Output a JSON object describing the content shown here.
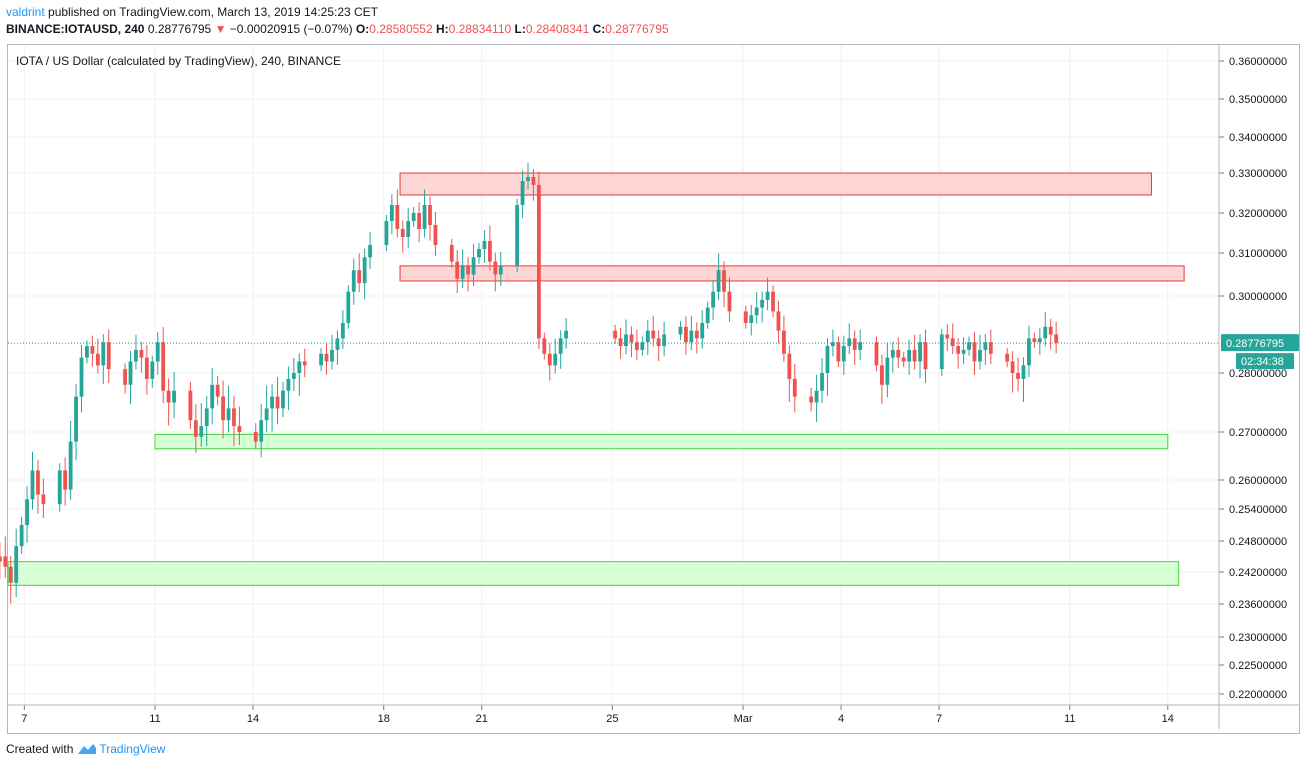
{
  "header": {
    "user": "valdrint",
    "published": "published on TradingView.com, March 13, 2019 14:25:23 CET",
    "symbol": "BINANCE:IOTAUSD, 240",
    "last": "0.28776795",
    "change": "−0.00020915 (−0.07%)",
    "o_label": "O:",
    "o_value": "0.28580552",
    "h_label": "H:",
    "h_value": "0.28834110",
    "l_label": "L:",
    "l_value": "0.28408341",
    "c_label": "C:",
    "c_value": "0.28776795"
  },
  "footer": {
    "created_with": "Created with",
    "brand": "TradingView"
  },
  "colors": {
    "up": "#26a69a",
    "down": "#ef5350",
    "grid": "#eef0f3",
    "resistance_fill": "#ffd6d6",
    "resistance_border": "#e53935",
    "support_fill": "#d7ffd6",
    "support_border": "#43d33d",
    "price_tag": "#26a69a",
    "last_line": "#2196a8"
  },
  "chart_data": {
    "type": "candlestick",
    "title": "IOTA / US Dollar (calculated by TradingView), 240, BINANCE",
    "y_ticks": [
      "0.36000000",
      "0.35000000",
      "0.34000000",
      "0.33000000",
      "0.32000000",
      "0.31000000",
      "0.30000000",
      "0.28000000",
      "0.27000000",
      "0.26000000",
      "0.25400000",
      "0.24800000",
      "0.24200000",
      "0.23600000",
      "0.23000000",
      "0.22500000",
      "0.22000000"
    ],
    "y_tick_values": [
      0.36,
      0.35,
      0.34,
      0.33,
      0.32,
      0.31,
      0.3,
      0.28,
      0.27,
      0.26,
      0.254,
      0.248,
      0.242,
      0.236,
      0.23,
      0.225,
      0.22
    ],
    "x_ticks": [
      {
        "label": "7",
        "date": "2019-02-07"
      },
      {
        "label": "11",
        "date": "2019-02-11"
      },
      {
        "label": "14",
        "date": "2019-02-14"
      },
      {
        "label": "18",
        "date": "2019-02-18"
      },
      {
        "label": "21",
        "date": "2019-02-21"
      },
      {
        "label": "25",
        "date": "2019-02-25"
      },
      {
        "label": "Mar",
        "date": "2019-03-01"
      },
      {
        "label": "4",
        "date": "2019-03-04"
      },
      {
        "label": "7",
        "date": "2019-03-07"
      },
      {
        "label": "11",
        "date": "2019-03-11"
      },
      {
        "label": "14",
        "date": "2019-03-14"
      }
    ],
    "last_price": 0.28776795,
    "last_price_label": "0.28776795",
    "countdown": "02:34:38",
    "zones": [
      {
        "kind": "resistance",
        "date_from": "2019-02-18T12:00",
        "date_to": "2019-03-13T12:00",
        "low": 0.3245,
        "high": 0.33
      },
      {
        "kind": "resistance",
        "date_from": "2019-02-18T12:00",
        "date_to": "2019-03-14T12:00",
        "low": 0.3035,
        "high": 0.307
      },
      {
        "kind": "support",
        "date_from": "2019-02-11",
        "date_to": "2019-03-14",
        "low": 0.2665,
        "high": 0.2695
      },
      {
        "kind": "support",
        "date_from": "2019-02-06T12:00",
        "date_to": "2019-03-14T08:00",
        "low": 0.2395,
        "high": 0.244
      }
    ],
    "series": [
      {
        "key": "2019-02-06",
        "path": [
          [
            0.257,
            0.251
          ],
          [
            0.245,
            0.244
          ],
          [
            0.245,
            0.243
          ],
          [
            0.243,
            0.24
          ],
          [
            0.24,
            0.247
          ],
          [
            0.247,
            0.251
          ],
          [
            0.251,
            0.256
          ],
          [
            0.256,
            0.262
          ],
          [
            0.262,
            0.257
          ],
          [
            0.257,
            0.255
          ]
        ]
      },
      {
        "key": "2019-02-08",
        "path": [
          [
            0.255,
            0.262
          ],
          [
            0.262,
            0.258
          ],
          [
            0.258,
            0.268
          ],
          [
            0.268,
            0.276
          ],
          [
            0.276,
            0.284
          ],
          [
            0.284,
            0.287
          ],
          [
            0.287,
            0.285
          ],
          [
            0.285,
            0.282
          ],
          [
            0.282,
            0.288
          ],
          [
            0.288,
            0.281
          ]
        ]
      },
      {
        "key": "2019-02-10",
        "path": [
          [
            0.281,
            0.278
          ],
          [
            0.278,
            0.283
          ],
          [
            0.283,
            0.286
          ],
          [
            0.286,
            0.284
          ],
          [
            0.284,
            0.279
          ],
          [
            0.279,
            0.283
          ],
          [
            0.283,
            0.288
          ],
          [
            0.288,
            0.277
          ],
          [
            0.277,
            0.275
          ],
          [
            0.275,
            0.277
          ]
        ]
      },
      {
        "key": "2019-02-12",
        "path": [
          [
            0.277,
            0.272
          ],
          [
            0.272,
            0.269
          ],
          [
            0.269,
            0.271
          ],
          [
            0.271,
            0.274
          ],
          [
            0.274,
            0.278
          ],
          [
            0.278,
            0.276
          ],
          [
            0.276,
            0.272
          ],
          [
            0.272,
            0.274
          ],
          [
            0.274,
            0.271
          ],
          [
            0.271,
            0.27
          ]
        ]
      },
      {
        "key": "2019-02-14",
        "path": [
          [
            0.27,
            0.268
          ],
          [
            0.268,
            0.272
          ],
          [
            0.272,
            0.274
          ],
          [
            0.274,
            0.276
          ],
          [
            0.276,
            0.274
          ],
          [
            0.274,
            0.277
          ],
          [
            0.277,
            0.279
          ],
          [
            0.279,
            0.28
          ],
          [
            0.28,
            0.283
          ],
          [
            0.283,
            0.282
          ]
        ]
      },
      {
        "key": "2019-02-16",
        "path": [
          [
            0.282,
            0.285
          ],
          [
            0.285,
            0.283
          ],
          [
            0.283,
            0.286
          ],
          [
            0.286,
            0.289
          ],
          [
            0.289,
            0.293
          ],
          [
            0.293,
            0.301
          ],
          [
            0.301,
            0.306
          ],
          [
            0.306,
            0.303
          ],
          [
            0.303,
            0.309
          ],
          [
            0.309,
            0.312
          ]
        ]
      },
      {
        "key": "2019-02-18",
        "path": [
          [
            0.312,
            0.318
          ],
          [
            0.318,
            0.322
          ],
          [
            0.322,
            0.316
          ],
          [
            0.316,
            0.314
          ],
          [
            0.314,
            0.318
          ],
          [
            0.318,
            0.32
          ],
          [
            0.32,
            0.316
          ],
          [
            0.316,
            0.322
          ],
          [
            0.322,
            0.317
          ],
          [
            0.317,
            0.312
          ]
        ]
      },
      {
        "key": "2019-02-20",
        "path": [
          [
            0.312,
            0.308
          ],
          [
            0.308,
            0.304
          ],
          [
            0.304,
            0.307
          ],
          [
            0.307,
            0.305
          ],
          [
            0.305,
            0.309
          ],
          [
            0.309,
            0.311
          ],
          [
            0.311,
            0.313
          ],
          [
            0.313,
            0.308
          ],
          [
            0.308,
            0.305
          ],
          [
            0.305,
            0.307
          ]
        ]
      },
      {
        "key": "2019-02-22",
        "path": [
          [
            0.307,
            0.322
          ],
          [
            0.322,
            0.328
          ],
          [
            0.328,
            0.329
          ],
          [
            0.329,
            0.327
          ],
          [
            0.327,
            0.289
          ],
          [
            0.289,
            0.285
          ],
          [
            0.285,
            0.282
          ],
          [
            0.282,
            0.285
          ],
          [
            0.285,
            0.289
          ],
          [
            0.289,
            0.291
          ]
        ]
      },
      {
        "key": "2019-02-25",
        "path": [
          [
            0.291,
            0.289
          ],
          [
            0.289,
            0.287
          ],
          [
            0.287,
            0.29
          ],
          [
            0.29,
            0.288
          ],
          [
            0.288,
            0.286
          ],
          [
            0.286,
            0.288
          ],
          [
            0.288,
            0.291
          ],
          [
            0.291,
            0.289
          ],
          [
            0.289,
            0.287
          ],
          [
            0.287,
            0.29
          ]
        ]
      },
      {
        "key": "2019-02-27",
        "path": [
          [
            0.29,
            0.292
          ],
          [
            0.292,
            0.288
          ],
          [
            0.288,
            0.291
          ],
          [
            0.291,
            0.289
          ],
          [
            0.289,
            0.293
          ],
          [
            0.293,
            0.297
          ],
          [
            0.297,
            0.301
          ],
          [
            0.301,
            0.306
          ],
          [
            0.306,
            0.301
          ],
          [
            0.301,
            0.296
          ]
        ]
      },
      {
        "key": "2019-03-01",
        "path": [
          [
            0.296,
            0.293
          ],
          [
            0.293,
            0.295
          ],
          [
            0.295,
            0.297
          ],
          [
            0.297,
            0.299
          ],
          [
            0.299,
            0.301
          ],
          [
            0.301,
            0.296
          ],
          [
            0.296,
            0.291
          ],
          [
            0.291,
            0.285
          ],
          [
            0.285,
            0.279
          ],
          [
            0.279,
            0.276
          ]
        ]
      },
      {
        "key": "2019-03-03",
        "path": [
          [
            0.276,
            0.275
          ],
          [
            0.275,
            0.277
          ],
          [
            0.277,
            0.28
          ],
          [
            0.28,
            0.287
          ],
          [
            0.287,
            0.288
          ],
          [
            0.288,
            0.283
          ],
          [
            0.283,
            0.287
          ],
          [
            0.287,
            0.289
          ],
          [
            0.289,
            0.286
          ],
          [
            0.286,
            0.288
          ]
        ]
      },
      {
        "key": "2019-03-05",
        "path": [
          [
            0.288,
            0.282
          ],
          [
            0.282,
            0.278
          ],
          [
            0.278,
            0.284
          ],
          [
            0.284,
            0.286
          ],
          [
            0.286,
            0.284
          ],
          [
            0.284,
            0.283
          ],
          [
            0.283,
            0.286
          ],
          [
            0.286,
            0.283
          ],
          [
            0.283,
            0.288
          ],
          [
            0.288,
            0.281
          ]
        ]
      },
      {
        "key": "2019-03-07",
        "path": [
          [
            0.281,
            0.29
          ],
          [
            0.29,
            0.289
          ],
          [
            0.289,
            0.287
          ],
          [
            0.287,
            0.285
          ],
          [
            0.285,
            0.286
          ],
          [
            0.286,
            0.288
          ],
          [
            0.288,
            0.283
          ],
          [
            0.283,
            0.286
          ],
          [
            0.286,
            0.288
          ],
          [
            0.288,
            0.285
          ]
        ]
      },
      {
        "key": "2019-03-09",
        "path": [
          [
            0.285,
            0.283
          ],
          [
            0.283,
            0.28
          ],
          [
            0.28,
            0.279
          ],
          [
            0.279,
            0.282
          ],
          [
            0.282,
            0.289
          ],
          [
            0.289,
            0.288
          ],
          [
            0.288,
            0.289
          ],
          [
            0.289,
            0.292
          ],
          [
            0.292,
            0.29
          ],
          [
            0.29,
            0.2878
          ]
        ]
      }
    ]
  }
}
